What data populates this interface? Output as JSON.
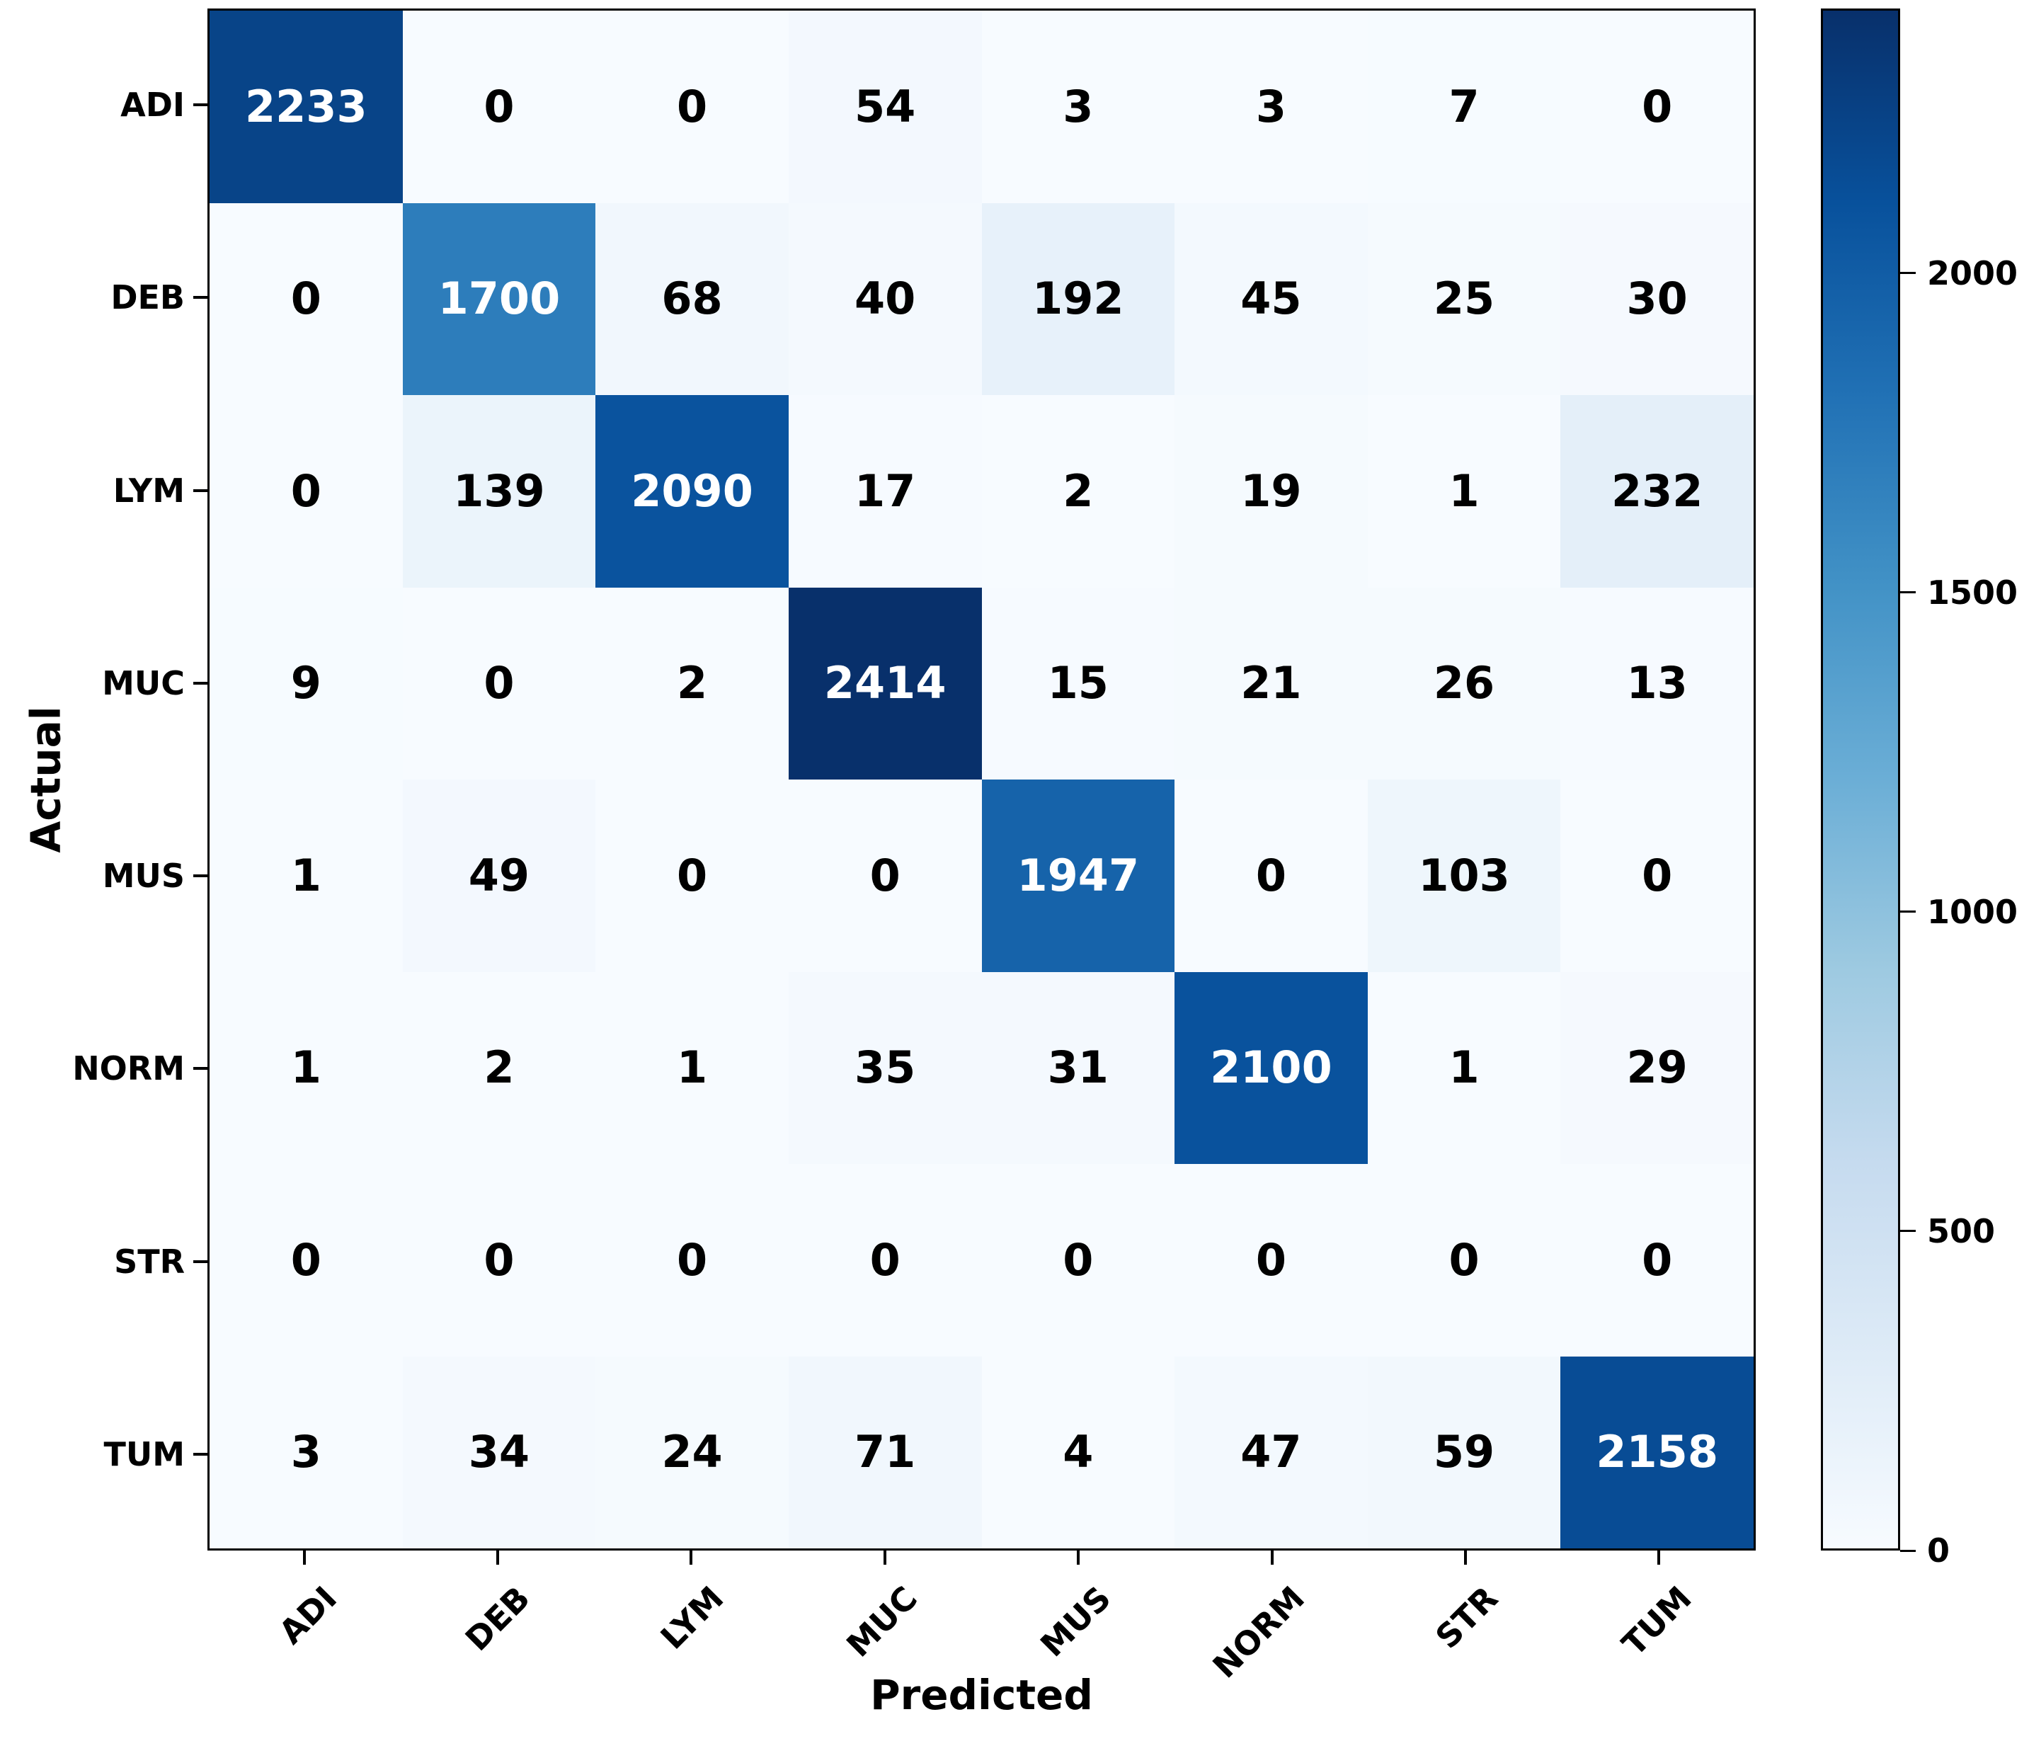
{
  "chart_data": {
    "type": "heatmap",
    "subtype": "confusion-matrix",
    "xlabel": "Predicted",
    "ylabel": "Actual",
    "categories": [
      "ADI",
      "DEB",
      "LYM",
      "MUC",
      "MUS",
      "NORM",
      "STR",
      "TUM"
    ],
    "matrix": [
      [
        2233,
        0,
        0,
        54,
        3,
        3,
        7,
        0
      ],
      [
        0,
        1700,
        68,
        40,
        192,
        45,
        25,
        30
      ],
      [
        0,
        139,
        2090,
        17,
        2,
        19,
        1,
        232
      ],
      [
        9,
        0,
        2,
        2414,
        15,
        21,
        26,
        13
      ],
      [
        1,
        49,
        0,
        0,
        1947,
        0,
        103,
        0
      ],
      [
        1,
        2,
        1,
        35,
        31,
        2100,
        1,
        29
      ],
      [
        0,
        0,
        0,
        0,
        0,
        0,
        0,
        0
      ],
      [
        3,
        34,
        24,
        71,
        4,
        47,
        59,
        2158
      ]
    ],
    "vmin": 0,
    "vmax": 2414,
    "colormap": "Blues",
    "colormap_stops": [
      [
        0.0,
        "#f7fbff"
      ],
      [
        0.125,
        "#deebf7"
      ],
      [
        0.25,
        "#c6dbef"
      ],
      [
        0.375,
        "#9ecae1"
      ],
      [
        0.5,
        "#6baed6"
      ],
      [
        0.625,
        "#4292c6"
      ],
      [
        0.75,
        "#2171b5"
      ],
      [
        0.875,
        "#08519c"
      ],
      [
        1.0,
        "#08306b"
      ]
    ],
    "colorbar_ticks": [
      0,
      500,
      1000,
      1500,
      2000
    ],
    "legend_position": "right-colorbar",
    "grid": false,
    "value_text_color_dark": "#000000",
    "value_text_color_light": "#ffffff"
  }
}
